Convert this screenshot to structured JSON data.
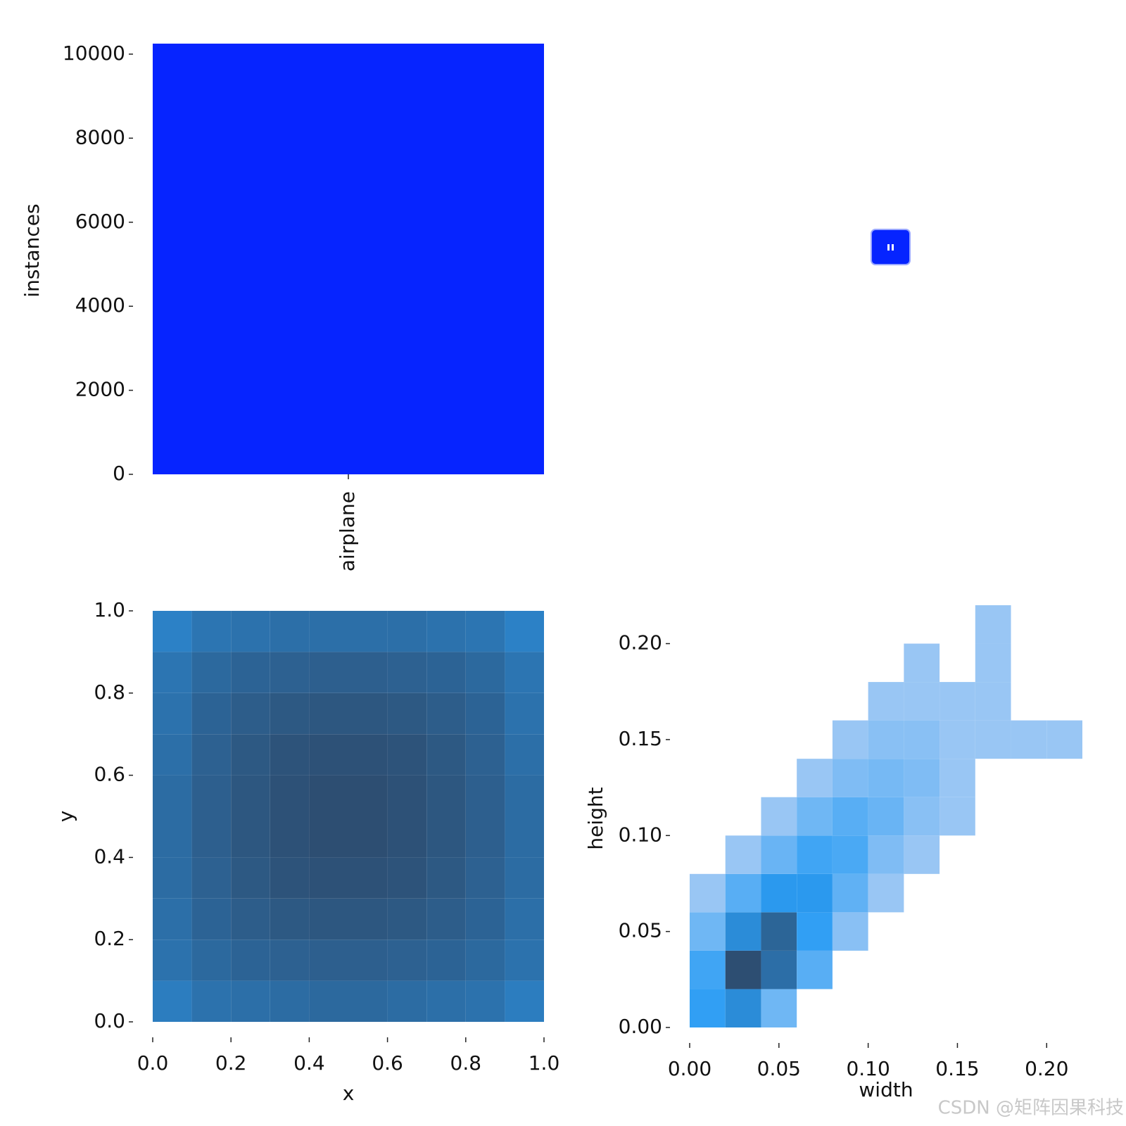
{
  "chart_data": [
    {
      "type": "bar",
      "ylabel": "instances",
      "categories": [
        "airplane"
      ],
      "values": [
        10250
      ],
      "color": "#0624ff",
      "ylim": [
        0,
        10250
      ],
      "yticks": [
        0,
        2000,
        4000,
        6000,
        8000,
        10000
      ]
    },
    {
      "type": "hist2d",
      "xlabel": "x",
      "ylabel": "y",
      "xbins": [
        0,
        0.1,
        0.2,
        0.3,
        0.4,
        0.5,
        0.6,
        0.7,
        0.8,
        0.9,
        1
      ],
      "ybins": [
        0,
        0.1,
        0.2,
        0.3,
        0.4,
        0.5,
        0.6,
        0.7,
        0.8,
        0.9,
        1
      ],
      "counts": [
        [
          22,
          28,
          30,
          32,
          34,
          34,
          32,
          30,
          28,
          22
        ],
        [
          28,
          34,
          38,
          40,
          42,
          42,
          40,
          38,
          34,
          28
        ],
        [
          30,
          38,
          44,
          48,
          50,
          50,
          48,
          44,
          38,
          30
        ],
        [
          32,
          40,
          48,
          54,
          56,
          56,
          54,
          48,
          40,
          32
        ],
        [
          32,
          42,
          50,
          56,
          60,
          60,
          56,
          50,
          42,
          32
        ],
        [
          32,
          42,
          50,
          56,
          60,
          60,
          56,
          50,
          42,
          32
        ],
        [
          30,
          40,
          48,
          54,
          56,
          56,
          54,
          48,
          40,
          30
        ],
        [
          28,
          38,
          44,
          48,
          50,
          50,
          48,
          44,
          38,
          28
        ],
        [
          26,
          34,
          38,
          40,
          42,
          42,
          40,
          38,
          34,
          26
        ],
        [
          20,
          26,
          28,
          30,
          30,
          30,
          30,
          28,
          26,
          20
        ]
      ],
      "colors": [
        "#b3d0f4",
        "#2b9df4",
        "#2d4e72"
      ],
      "xlim": [
        0,
        1
      ],
      "ylim": [
        0,
        1
      ],
      "xticks": [
        {
          "value": 0,
          "label": "0.0"
        },
        {
          "value": 0.2,
          "label": "0.2"
        },
        {
          "value": 0.4,
          "label": "0.4"
        },
        {
          "value": 0.6,
          "label": "0.6"
        },
        {
          "value": 0.8,
          "label": "0.8"
        },
        {
          "value": 1,
          "label": "1.0"
        }
      ],
      "yticks": [
        {
          "value": 0,
          "label": "0.0"
        },
        {
          "value": 0.2,
          "label": "0.2"
        },
        {
          "value": 0.4,
          "label": "0.4"
        },
        {
          "value": 0.6,
          "label": "0.6"
        },
        {
          "value": 0.8,
          "label": "0.8"
        },
        {
          "value": 1,
          "label": "1.0"
        }
      ]
    },
    {
      "type": "hist2d",
      "xlabel": "width",
      "ylabel": "height",
      "xbins": [
        0,
        0.02,
        0.04,
        0.06,
        0.08,
        0.1,
        0.12,
        0.14,
        0.16,
        0.18,
        0.2,
        0.22
      ],
      "ybins": [
        0,
        0.02,
        0.04,
        0.06,
        0.08,
        0.1,
        0.12,
        0.14,
        0.16,
        0.18,
        0.2,
        0.22
      ],
      "counts": [
        [
          30,
          60,
          5,
          0,
          0,
          0,
          0,
          0,
          0,
          0,
          0
        ],
        [
          20,
          400,
          150,
          10,
          0,
          0,
          0,
          0,
          0,
          0,
          0
        ],
        [
          5,
          60,
          200,
          30,
          2,
          0,
          0,
          0,
          0,
          0,
          0
        ],
        [
          1,
          10,
          40,
          40,
          8,
          1,
          0,
          0,
          0,
          0,
          0
        ],
        [
          0,
          1,
          6,
          20,
          15,
          3,
          1,
          0,
          0,
          0,
          0
        ],
        [
          0,
          0,
          1,
          5,
          10,
          6,
          2,
          1,
          0,
          0,
          0
        ],
        [
          0,
          0,
          0,
          1,
          3,
          4,
          3,
          1,
          0,
          0,
          0
        ],
        [
          0,
          0,
          0,
          0,
          1,
          2,
          2,
          1,
          1,
          1,
          1
        ],
        [
          0,
          0,
          0,
          0,
          0,
          1,
          1,
          1,
          1,
          0,
          0
        ],
        [
          0,
          0,
          0,
          0,
          0,
          0,
          1,
          0,
          1,
          0,
          0
        ],
        [
          0,
          0,
          0,
          0,
          0,
          0,
          0,
          0,
          1,
          0,
          0
        ]
      ],
      "colors": [
        "#b3d0f4",
        "#2b9df4",
        "#2d4e72"
      ],
      "xlim": [
        0,
        0.22
      ],
      "ylim": [
        0,
        0.22
      ],
      "xticks": [
        {
          "value": 0,
          "label": "0.00"
        },
        {
          "value": 0.05,
          "label": "0.05"
        },
        {
          "value": 0.1,
          "label": "0.10"
        },
        {
          "value": 0.15,
          "label": "0.15"
        },
        {
          "value": 0.2,
          "label": "0.20"
        }
      ],
      "yticks": [
        {
          "value": 0,
          "label": "0.00"
        },
        {
          "value": 0.05,
          "label": "0.05"
        },
        {
          "value": 0.1,
          "label": "0.10"
        },
        {
          "value": 0.15,
          "label": "0.15"
        },
        {
          "value": 0.2,
          "label": "0.20"
        }
      ]
    }
  ],
  "watermark": "CSDN @矩阵因果科技"
}
